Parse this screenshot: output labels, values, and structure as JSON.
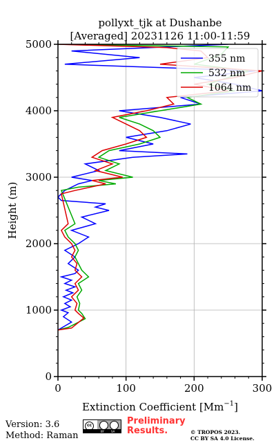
{
  "chart_data": {
    "type": "line",
    "title": "pollyxt_tjk at Dushanbe",
    "subtitle": "[Averaged] 20231126 11:00-11:59",
    "xlabel": "Extinction Coefficient [Mm",
    "xlabel_sup": "−1",
    "xlabel_close": "]",
    "ylabel": "Height (m)",
    "xlim": [
      0,
      300
    ],
    "ylim": [
      0,
      5000
    ],
    "xticks": [
      0,
      100,
      200,
      300
    ],
    "yticks": [
      0,
      1000,
      2000,
      3000,
      4000,
      5000
    ],
    "grid": true,
    "legend_position": "top-right",
    "series": [
      {
        "name": "355 nm",
        "color": "#0000ff",
        "points": [
          [
            0,
            700
          ],
          [
            10,
            760
          ],
          [
            20,
            820
          ],
          [
            8,
            900
          ],
          [
            15,
            960
          ],
          [
            5,
            1000
          ],
          [
            18,
            1050
          ],
          [
            10,
            1100
          ],
          [
            20,
            1150
          ],
          [
            8,
            1200
          ],
          [
            22,
            1260
          ],
          [
            12,
            1300
          ],
          [
            25,
            1350
          ],
          [
            10,
            1400
          ],
          [
            20,
            1450
          ],
          [
            5,
            1500
          ],
          [
            25,
            1550
          ],
          [
            30,
            1600
          ],
          [
            15,
            1700
          ],
          [
            25,
            1800
          ],
          [
            10,
            1900
          ],
          [
            30,
            2000
          ],
          [
            45,
            2100
          ],
          [
            20,
            2200
          ],
          [
            55,
            2300
          ],
          [
            35,
            2400
          ],
          [
            75,
            2500
          ],
          [
            55,
            2550
          ],
          [
            70,
            2600
          ],
          [
            5,
            2650
          ],
          [
            0,
            2700
          ],
          [
            10,
            2800
          ],
          [
            30,
            2900
          ],
          [
            50,
            2950
          ],
          [
            20,
            3000
          ],
          [
            60,
            3100
          ],
          [
            40,
            3200
          ],
          [
            110,
            3300
          ],
          [
            190,
            3350
          ],
          [
            90,
            3400
          ],
          [
            140,
            3500
          ],
          [
            100,
            3600
          ],
          [
            160,
            3700
          ],
          [
            195,
            3800
          ],
          [
            150,
            3900
          ],
          [
            90,
            4000
          ],
          [
            210,
            4100
          ],
          [
            180,
            4200
          ],
          [
            300,
            4300
          ],
          [
            260,
            4400
          ],
          [
            200,
            4500
          ],
          [
            290,
            4600
          ],
          [
            10,
            4700
          ],
          [
            120,
            4800
          ],
          [
            20,
            4900
          ],
          [
            250,
            5000
          ]
        ]
      },
      {
        "name": "532 nm",
        "color": "#00aa00",
        "points": [
          [
            0,
            700
          ],
          [
            15,
            740
          ],
          [
            40,
            870
          ],
          [
            35,
            950
          ],
          [
            30,
            1000
          ],
          [
            32,
            1100
          ],
          [
            28,
            1200
          ],
          [
            35,
            1300
          ],
          [
            30,
            1400
          ],
          [
            45,
            1500
          ],
          [
            35,
            1600
          ],
          [
            30,
            1700
          ],
          [
            25,
            1800
          ],
          [
            30,
            1900
          ],
          [
            25,
            2000
          ],
          [
            15,
            2100
          ],
          [
            10,
            2200
          ],
          [
            25,
            2300
          ],
          [
            5,
            2800
          ],
          [
            30,
            2850
          ],
          [
            85,
            2900
          ],
          [
            60,
            2950
          ],
          [
            110,
            3000
          ],
          [
            70,
            3100
          ],
          [
            90,
            3200
          ],
          [
            60,
            3300
          ],
          [
            75,
            3400
          ],
          [
            120,
            3500
          ],
          [
            150,
            3600
          ],
          [
            140,
            3700
          ],
          [
            120,
            3800
          ],
          [
            90,
            3900
          ],
          [
            150,
            4000
          ],
          [
            210,
            4100
          ],
          [
            190,
            4200
          ],
          [
            260,
            4300
          ],
          [
            220,
            4400
          ],
          [
            250,
            4500
          ],
          [
            280,
            4600
          ],
          [
            200,
            4700
          ],
          [
            240,
            4850
          ],
          [
            250,
            4960
          ],
          [
            0,
            5000
          ]
        ]
      },
      {
        "name": "1064 nm",
        "color": "#dd0000",
        "points": [
          [
            0,
            700
          ],
          [
            20,
            730
          ],
          [
            38,
            880
          ],
          [
            30,
            950
          ],
          [
            25,
            1000
          ],
          [
            28,
            1100
          ],
          [
            20,
            1200
          ],
          [
            30,
            1300
          ],
          [
            25,
            1400
          ],
          [
            35,
            1500
          ],
          [
            25,
            1600
          ],
          [
            28,
            1700
          ],
          [
            20,
            1800
          ],
          [
            25,
            1900
          ],
          [
            20,
            2000
          ],
          [
            10,
            2100
          ],
          [
            5,
            2200
          ],
          [
            15,
            2300
          ],
          [
            5,
            2750
          ],
          [
            25,
            2800
          ],
          [
            70,
            2900
          ],
          [
            50,
            2950
          ],
          [
            95,
            3000
          ],
          [
            55,
            3100
          ],
          [
            80,
            3200
          ],
          [
            50,
            3300
          ],
          [
            65,
            3400
          ],
          [
            100,
            3500
          ],
          [
            130,
            3600
          ],
          [
            120,
            3700
          ],
          [
            100,
            3800
          ],
          [
            80,
            3900
          ],
          [
            130,
            4000
          ],
          [
            170,
            4100
          ],
          [
            160,
            4200
          ],
          [
            250,
            4300
          ],
          [
            200,
            4400
          ],
          [
            260,
            4500
          ],
          [
            300,
            4600
          ],
          [
            150,
            4700
          ],
          [
            220,
            4800
          ],
          [
            210,
            4900
          ],
          [
            160,
            4950
          ],
          [
            0,
            5000
          ]
        ]
      }
    ]
  },
  "footer": {
    "version": "Version: 3.6",
    "method": "Method: Raman",
    "preliminary_line1": "Preliminary",
    "preliminary_line2": "Results.",
    "copyright_line1": "© TROPOS 2023.",
    "copyright_line2": "CC BY SA 4.0 License."
  },
  "license_badge": {
    "cc": "cc",
    "by": "BY",
    "sa": "SA"
  }
}
